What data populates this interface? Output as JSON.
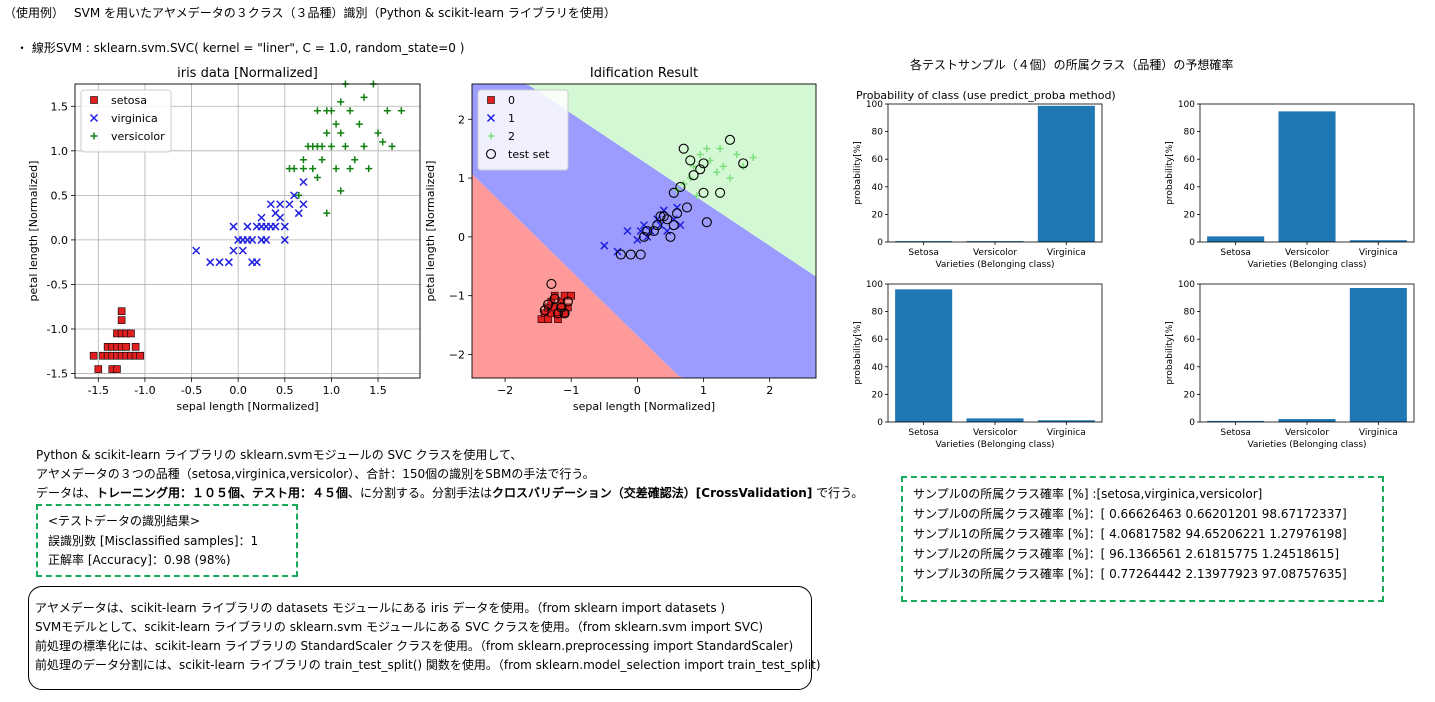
{
  "header": {
    "usage_prefix": "（使用例）",
    "title": "SVM を用いたアヤメデータの３クラス（３品種）識別（Python & scikit-learn ライブラリを使用）",
    "model_line": "・ 線形SVM : sklearn.svm.SVC( kernel = \"liner\", C = 1.0, random_state=0 )"
  },
  "proba_section_title": "各テストサンプル（４個）の所属クラス（品種）の予想確率",
  "description": {
    "line1": "Python & scikit-learn ライブラリの sklearn.svmモジュールの SVC クラスを使用して、",
    "line2": "アヤメデータの３つの品種（setosa,virginica,versicolor）、合計：150個の識別をSBMの手法で行う。",
    "line3_a": "データは、",
    "line3_b": "トレーニング用：１０５個、テスト用：４５個",
    "line3_c": "、に分割する。分割手法は",
    "line3_d": "クロスバリデーション（交差確認法）[CrossValidation]",
    "line3_e": " で行う。"
  },
  "result_box": {
    "title": "<テストデータの識別結果>",
    "misclassified": "誤識別数 [Misclassified samples]：1",
    "accuracy": "正解率 [Accuracy]：0.98 (98%)"
  },
  "notes": [
    "アヤメデータは、scikit-learn ライブラリの datasets モジュールにある iris データを使用。（from sklearn import datasets )",
    "SVMモデルとして、scikit-learn ライブラリの sklearn.svm モジュールにある SVC クラスを使用。（from sklearn.svm import SVC)",
    "前処理の標準化には、scikit-learn ライブラリの StandardScaler クラスを使用。（from sklearn.preprocessing import StandardScaler)",
    "前処理のデータ分割には、scikit-learn ライブラリの train_test_split() 関数を使用。（from sklearn.model_selection import train_test_split)"
  ],
  "proba_box": {
    "lines": [
      "サンプル0の所属クラス確率 [%] :[setosa,virginica,versicolor]",
      "サンプル0の所属クラス確率 [%]：[   0.66626463    0.66201201   98.67172337]",
      "サンプル1の所属クラス確率 [%]：[   4.06817582   94.65206221    1.27976198]",
      "サンプル2の所属クラス確率 [%]：[ 96.1366561      2.61815775    1.24518615]",
      "サンプル3の所属クラス確率 [%]：[   0.77264442    2.13977923   97.08757635]"
    ]
  },
  "colors": {
    "setosa": "#e02020",
    "virginica": "#2020e0",
    "versicolor": "#108010",
    "region0": "#ff9a9a",
    "region1": "#9c9cff",
    "region2": "#d4f7d4",
    "bar": "#1f77b4",
    "dash": "#1aa85a"
  },
  "chart_data": [
    {
      "type": "scatter",
      "title": "iris data [Normalized]",
      "xlabel": "sepal length [Normalized]",
      "ylabel": "petal length [Normalized]",
      "xlim": [
        -1.75,
        1.95
      ],
      "ylim": [
        -1.55,
        1.75
      ],
      "xticks": [
        "-1.5",
        "-1.0",
        "-0.5",
        "0.0",
        "0.5",
        "1.0",
        "1.5"
      ],
      "yticks": [
        "-1.5",
        "-1.0",
        "-0.5",
        "0.0",
        "0.5",
        "1.0",
        "1.5"
      ],
      "grid": true,
      "legend_position": "top-left",
      "series": [
        {
          "name": "setosa",
          "marker": "square",
          "points": [
            [
              -1.55,
              -1.3
            ],
            [
              -1.5,
              -1.45
            ],
            [
              -1.45,
              -1.3
            ],
            [
              -1.4,
              -1.2
            ],
            [
              -1.4,
              -1.3
            ],
            [
              -1.35,
              -1.2
            ],
            [
              -1.35,
              -1.3
            ],
            [
              -1.35,
              -1.45
            ],
            [
              -1.3,
              -1.05
            ],
            [
              -1.3,
              -1.2
            ],
            [
              -1.3,
              -1.3
            ],
            [
              -1.3,
              -1.45
            ],
            [
              -1.25,
              -1.05
            ],
            [
              -1.25,
              -1.2
            ],
            [
              -1.25,
              -1.3
            ],
            [
              -1.25,
              -0.8
            ],
            [
              -1.25,
              -0.9
            ],
            [
              -1.2,
              -1.05
            ],
            [
              -1.2,
              -1.2
            ],
            [
              -1.2,
              -1.3
            ],
            [
              -1.15,
              -1.05
            ],
            [
              -1.15,
              -1.3
            ],
            [
              -1.1,
              -1.2
            ],
            [
              -1.1,
              -1.3
            ],
            [
              -1.05,
              -1.3
            ]
          ]
        },
        {
          "name": "virginica",
          "marker": "x",
          "points": [
            [
              -0.45,
              -0.12
            ],
            [
              -0.3,
              -0.25
            ],
            [
              -0.2,
              -0.25
            ],
            [
              -0.1,
              -0.25
            ],
            [
              -0.05,
              -0.12
            ],
            [
              -0.05,
              0.15
            ],
            [
              0.0,
              0.0
            ],
            [
              0.05,
              0.0
            ],
            [
              0.05,
              -0.12
            ],
            [
              0.1,
              0.15
            ],
            [
              0.1,
              0.0
            ],
            [
              0.15,
              0.0
            ],
            [
              0.15,
              -0.25
            ],
            [
              0.2,
              0.15
            ],
            [
              0.2,
              -0.25
            ],
            [
              0.25,
              0.15
            ],
            [
              0.25,
              0.0
            ],
            [
              0.25,
              0.25
            ],
            [
              0.3,
              0.0
            ],
            [
              0.3,
              0.15
            ],
            [
              0.35,
              0.15
            ],
            [
              0.35,
              0.4
            ],
            [
              0.4,
              0.15
            ],
            [
              0.4,
              0.3
            ],
            [
              0.45,
              0.4
            ],
            [
              0.45,
              0.25
            ],
            [
              0.5,
              0.0
            ],
            [
              0.5,
              0.15
            ],
            [
              0.55,
              0.4
            ],
            [
              0.6,
              0.5
            ],
            [
              0.65,
              0.3
            ],
            [
              0.7,
              0.4
            ],
            [
              0.7,
              0.65
            ]
          ]
        },
        {
          "name": "versicolor",
          "marker": "plus",
          "points": [
            [
              0.55,
              0.8
            ],
            [
              0.6,
              0.8
            ],
            [
              0.65,
              0.5
            ],
            [
              0.7,
              0.9
            ],
            [
              0.7,
              0.8
            ],
            [
              0.75,
              1.05
            ],
            [
              0.8,
              1.05
            ],
            [
              0.8,
              0.8
            ],
            [
              0.85,
              1.05
            ],
            [
              0.85,
              1.45
            ],
            [
              0.9,
              1.05
            ],
            [
              0.9,
              0.9
            ],
            [
              0.95,
              1.45
            ],
            [
              0.95,
              1.2
            ],
            [
              1.0,
              1.45
            ],
            [
              1.0,
              1.05
            ],
            [
              1.05,
              0.8
            ],
            [
              1.05,
              1.3
            ],
            [
              1.1,
              1.2
            ],
            [
              1.1,
              1.55
            ],
            [
              1.15,
              1.75
            ],
            [
              1.15,
              1.05
            ],
            [
              1.2,
              1.45
            ],
            [
              1.2,
              0.8
            ],
            [
              1.25,
              0.9
            ],
            [
              1.3,
              1.3
            ],
            [
              1.35,
              1.6
            ],
            [
              1.35,
              1.05
            ],
            [
              1.4,
              0.8
            ],
            [
              1.45,
              1.75
            ],
            [
              1.5,
              1.2
            ],
            [
              1.55,
              1.1
            ],
            [
              1.6,
              1.45
            ],
            [
              1.65,
              1.05
            ],
            [
              1.75,
              1.45
            ],
            [
              0.85,
              0.7
            ],
            [
              1.1,
              0.55
            ],
            [
              0.95,
              0.3
            ]
          ]
        }
      ]
    },
    {
      "type": "scatter",
      "title": "Idification Result",
      "xlabel": "sepal length [Normalized]",
      "ylabel": "petal length [Normalized]",
      "xlim": [
        -2.5,
        2.7
      ],
      "ylim": [
        -2.4,
        2.6
      ],
      "xticks": [
        "−2",
        "−1",
        "0",
        "1",
        "2"
      ],
      "yticks": [
        "−2",
        "−1",
        "0",
        "1",
        "2"
      ],
      "grid": false,
      "legend_position": "top-left",
      "decision_regions": "0 (red) lower-left, 1 (blue) middle band, 2 (green) upper-right",
      "series": [
        {
          "name": "0",
          "marker": "square",
          "points": [
            [
              -1.45,
              -1.4
            ],
            [
              -1.4,
              -1.3
            ],
            [
              -1.35,
              -1.2
            ],
            [
              -1.35,
              -1.4
            ],
            [
              -1.3,
              -1.1
            ],
            [
              -1.3,
              -1.3
            ],
            [
              -1.25,
              -1.2
            ],
            [
              -1.25,
              -1.0
            ],
            [
              -1.2,
              -1.3
            ],
            [
              -1.2,
              -1.4
            ],
            [
              -1.15,
              -1.1
            ],
            [
              -1.15,
              -1.2
            ],
            [
              -1.1,
              -1.0
            ],
            [
              -1.1,
              -1.3
            ],
            [
              -1.05,
              -1.2
            ],
            [
              -1.0,
              -1.0
            ]
          ]
        },
        {
          "name": "1",
          "marker": "x",
          "points": [
            [
              -0.5,
              -0.15
            ],
            [
              -0.3,
              -0.25
            ],
            [
              -0.15,
              0.1
            ],
            [
              0.0,
              -0.05
            ],
            [
              0.05,
              0.1
            ],
            [
              0.1,
              0.2
            ],
            [
              0.15,
              0.0
            ],
            [
              0.2,
              0.1
            ],
            [
              0.3,
              0.3
            ],
            [
              0.35,
              0.2
            ],
            [
              0.4,
              0.45
            ],
            [
              0.45,
              0.1
            ],
            [
              0.55,
              0.3
            ],
            [
              0.6,
              0.5
            ],
            [
              0.65,
              0.2
            ]
          ]
        },
        {
          "name": "2",
          "marker": "plus",
          "points": [
            [
              0.6,
              0.8
            ],
            [
              0.7,
              0.9
            ],
            [
              0.8,
              1.0
            ],
            [
              0.85,
              1.2
            ],
            [
              0.9,
              0.7
            ],
            [
              0.95,
              1.4
            ],
            [
              1.05,
              1.5
            ],
            [
              1.1,
              1.3
            ],
            [
              1.2,
              1.1
            ],
            [
              1.25,
              1.5
            ],
            [
              1.3,
              1.2
            ],
            [
              1.4,
              1.0
            ],
            [
              1.5,
              1.4
            ],
            [
              1.6,
              1.2
            ],
            [
              1.75,
              1.35
            ]
          ]
        },
        {
          "name": "test set",
          "marker": "circle",
          "points": [
            [
              -1.3,
              -0.8
            ],
            [
              -1.4,
              -1.25
            ],
            [
              -1.35,
              -1.15
            ],
            [
              -1.25,
              -1.05
            ],
            [
              -1.2,
              -1.3
            ],
            [
              -1.15,
              -1.2
            ],
            [
              -1.1,
              -1.3
            ],
            [
              -1.05,
              -1.1
            ],
            [
              -0.25,
              -0.3
            ],
            [
              -0.1,
              -0.3
            ],
            [
              0.05,
              -0.3
            ],
            [
              0.1,
              0.0
            ],
            [
              0.15,
              0.1
            ],
            [
              0.25,
              0.1
            ],
            [
              0.3,
              0.2
            ],
            [
              0.35,
              0.35
            ],
            [
              0.4,
              0.35
            ],
            [
              0.45,
              0.3
            ],
            [
              0.5,
              0.0
            ],
            [
              0.55,
              0.2
            ],
            [
              0.55,
              0.75
            ],
            [
              0.6,
              0.4
            ],
            [
              0.65,
              0.85
            ],
            [
              0.7,
              1.5
            ],
            [
              0.75,
              0.5
            ],
            [
              0.8,
              1.3
            ],
            [
              0.85,
              1.05
            ],
            [
              0.95,
              1.15
            ],
            [
              1.0,
              0.75
            ],
            [
              1.0,
              1.25
            ],
            [
              1.05,
              0.25
            ],
            [
              1.25,
              0.75
            ],
            [
              1.4,
              1.65
            ],
            [
              1.6,
              1.25
            ]
          ]
        }
      ]
    },
    {
      "type": "bar",
      "title": "Probability of class (use predict_proba method)",
      "xlabel": "Varieties (Belonging class)",
      "ylabel": "probability[%]",
      "categories": [
        "Setosa",
        "Versicolor",
        "Virginica"
      ],
      "values": [
        0.67,
        0.66,
        98.67
      ],
      "ylim": [
        0,
        100
      ],
      "yticks": [
        "0",
        "20",
        "40",
        "60",
        "80",
        "100"
      ]
    },
    {
      "type": "bar",
      "title": "",
      "xlabel": "Varieties (Belonging class)",
      "ylabel": "probability[%]",
      "categories": [
        "Setosa",
        "Versicolor",
        "Virginica"
      ],
      "values": [
        4.07,
        94.65,
        1.28
      ],
      "ylim": [
        0,
        100
      ],
      "yticks": [
        "0",
        "20",
        "40",
        "60",
        "80",
        "100"
      ]
    },
    {
      "type": "bar",
      "title": "",
      "xlabel": "Varieties (Belonging class)",
      "ylabel": "probability[%]",
      "categories": [
        "Setosa",
        "Versicolor",
        "Virginica"
      ],
      "values": [
        96.14,
        2.62,
        1.25
      ],
      "ylim": [
        0,
        100
      ],
      "yticks": [
        "0",
        "20",
        "40",
        "60",
        "80",
        "100"
      ]
    },
    {
      "type": "bar",
      "title": "",
      "xlabel": "Varieties (Belonging class)",
      "ylabel": "probability[%]",
      "categories": [
        "Setosa",
        "Versicolor",
        "Virginica"
      ],
      "values": [
        0.77,
        2.14,
        97.09
      ],
      "ylim": [
        0,
        100
      ],
      "yticks": [
        "0",
        "20",
        "40",
        "60",
        "80",
        "100"
      ]
    }
  ]
}
